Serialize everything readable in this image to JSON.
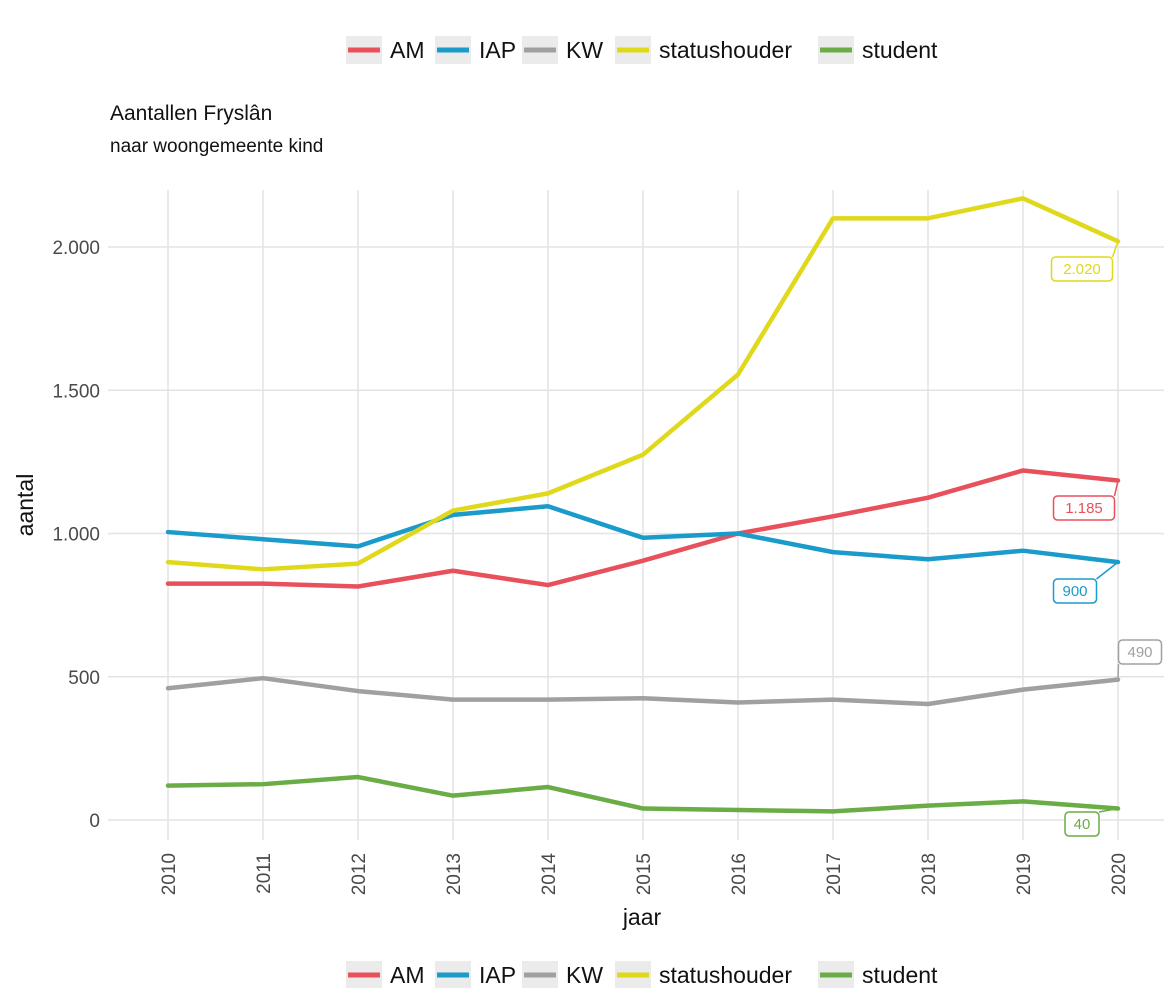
{
  "chart_data": {
    "type": "line",
    "title": "Aantallen Fryslân",
    "subtitle": "naar woongemeente kind",
    "xlabel": "jaar",
    "ylabel": "aantal",
    "x": [
      "2010",
      "2011",
      "2012",
      "2013",
      "2014",
      "2015",
      "2016",
      "2017",
      "2018",
      "2019",
      "2020"
    ],
    "ylim": [
      0,
      2250
    ],
    "y_ticks": [
      {
        "value": 0,
        "label": "0"
      },
      {
        "value": 500,
        "label": "500"
      },
      {
        "value": 1000,
        "label": "1.000"
      },
      {
        "value": 1500,
        "label": "1.500"
      },
      {
        "value": 2000,
        "label": "2.000"
      }
    ],
    "grid": true,
    "legend_position": "top and bottom",
    "series": [
      {
        "name": "AM",
        "color": "#e8505b",
        "values": [
          825,
          825,
          815,
          870,
          820,
          905,
          1000,
          1060,
          1125,
          1220,
          1185
        ],
        "end_label": "1.185"
      },
      {
        "name": "IAP",
        "color": "#1a9bc9",
        "values": [
          1005,
          980,
          955,
          1065,
          1095,
          985,
          1000,
          935,
          910,
          940,
          900
        ],
        "end_label": "900"
      },
      {
        "name": "KW",
        "color": "#a0a0a0",
        "values": [
          460,
          495,
          450,
          420,
          420,
          425,
          410,
          420,
          405,
          455,
          490
        ],
        "end_label": "490"
      },
      {
        "name": "statushouder",
        "color": "#e0d81a",
        "values": [
          900,
          875,
          895,
          1080,
          1140,
          1275,
          1555,
          2100,
          2100,
          2170,
          2020
        ],
        "end_label": "2.020"
      },
      {
        "name": "student",
        "color": "#6aac45",
        "values": [
          120,
          125,
          150,
          85,
          115,
          40,
          35,
          30,
          50,
          65,
          40
        ],
        "end_label": "40"
      }
    ]
  }
}
